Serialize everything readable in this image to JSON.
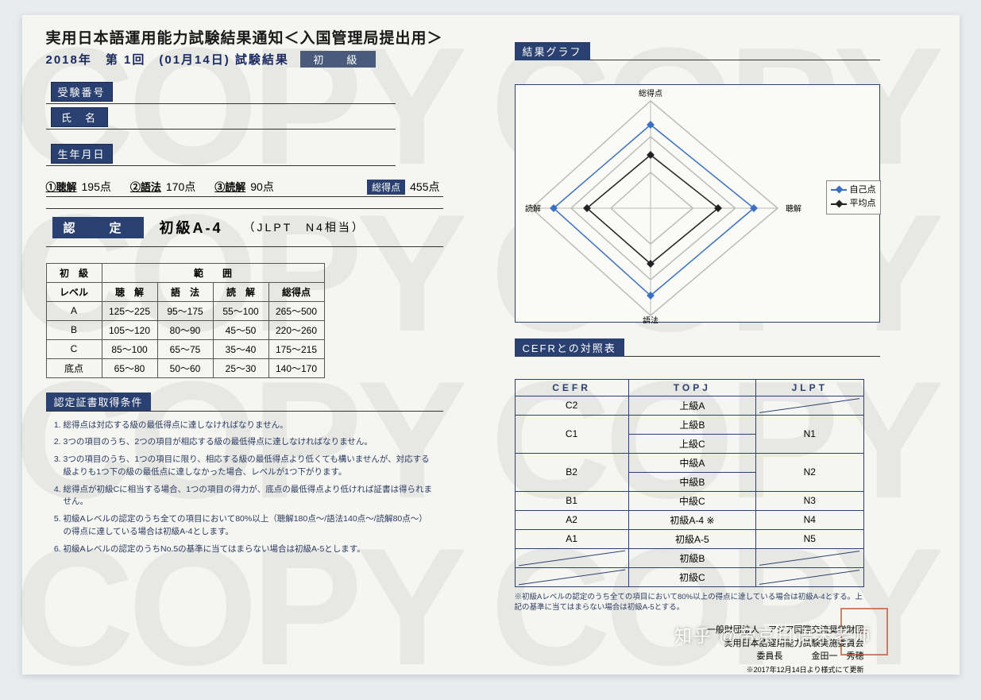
{
  "header": {
    "title": "実用日本語運用能力試験結果通知＜入国管理局提出用＞",
    "subtitle": "2018年　第 1回　(01月14日) 試験結果",
    "level_tag": "初　級"
  },
  "fields": {
    "exam_number_label": "受験番号",
    "name_label": "氏　名",
    "birthdate_label": "生年月日"
  },
  "scores": {
    "listening_label": "①聴解",
    "listening_value": "195点",
    "grammar_label": "②語法",
    "grammar_value": "170点",
    "reading_label": "③読解",
    "reading_value": "90点",
    "total_label": "総得点",
    "total_value": "455点"
  },
  "certification": {
    "label": "認　定",
    "value": "初級A-4",
    "note": "（JLPT　N4相当）"
  },
  "range_table": {
    "group_header_level": "初　級",
    "group_header_range": "範　　囲",
    "columns": [
      "レベル",
      "聴　解",
      "語　法",
      "読　解",
      "総得点"
    ],
    "rows": [
      [
        "A",
        "125～225",
        "95～175",
        "55～100",
        "265～500"
      ],
      [
        "B",
        "105～120",
        "80～90",
        "45～50",
        "220～260"
      ],
      [
        "C",
        "85～100",
        "65～75",
        "35～40",
        "175～215"
      ],
      [
        "底点",
        "65～80",
        "50～60",
        "25～30",
        "140～170"
      ]
    ]
  },
  "conditions": {
    "heading": "認定証書取得条件",
    "items": [
      "総得点は対応する級の最低得点に達しなければなりません。",
      "3つの項目のうち、2つの項目が相応する級の最低得点に達しなければなりません。",
      "3つの項目のうち、1つの項目に限り、相応する級の最低得点より低くても構いませんが、対応する級よりも1つ下の級の最低点に達しなかった場合、レベルが1つ下がります。",
      "総得点が初級Cに相当する場合、1つの項目の得力が、底点の最低得点より低ければ証書は得られません。",
      "初級Aレベルの認定のうち全ての項目において80%以上（聴解180点～/語法140点～/読解80点～）の得点に達している場合は初級A-4とします。",
      "初級Aレベルの認定のうちNo.5の基準に当てはまらない場合は初級A-5とします。"
    ]
  },
  "chart": {
    "title": "結果グラフ",
    "axes": {
      "top": "総得点",
      "right": "聴解",
      "bottom": "語法",
      "left": "読解"
    },
    "legend_self": "自己点",
    "legend_avg": "平均点",
    "self_color": "#3a70c0",
    "avg_color": "#222222",
    "self_points": [
      [
        170,
        50
      ],
      [
        300,
        155
      ],
      [
        170,
        265
      ],
      [
        48,
        155
      ]
    ],
    "avg_points": [
      [
        170,
        88
      ],
      [
        255,
        155
      ],
      [
        170,
        225
      ],
      [
        90,
        155
      ]
    ],
    "grid_outer": [
      [
        170,
        20
      ],
      [
        330,
        155
      ],
      [
        170,
        290
      ],
      [
        20,
        155
      ]
    ],
    "label_fontsize": 10,
    "bg_color": "#fafaf7",
    "border_color": "#2a4070"
  },
  "cefr": {
    "heading": "CEFRとの対照表",
    "columns": [
      "CEFR",
      "TOPJ",
      "JLPT"
    ],
    "rows": [
      {
        "cefr": "C2",
        "topj": "上級A",
        "jlpt": "strike"
      },
      {
        "cefr": "C1",
        "topj": [
          "上級B",
          "上級C"
        ],
        "jlpt": "N1"
      },
      {
        "cefr": "B2",
        "topj": [
          "中級A",
          "中級B"
        ],
        "jlpt": "N2"
      },
      {
        "cefr": "B1",
        "topj": "中級C",
        "jlpt": "N3"
      },
      {
        "cefr": "A2",
        "topj": "初級A-4 ※",
        "jlpt": "N4"
      },
      {
        "cefr": "A1",
        "topj": "初級A-5",
        "jlpt": "N5"
      },
      {
        "cefr": "strike",
        "topj": "初級B",
        "jlpt": "strike"
      },
      {
        "cefr": "strike",
        "topj": "初級C",
        "jlpt": "strike"
      }
    ],
    "notes": "※初級Aレベルの認定のうち全ての項目において80%以上の得点に達している場合は初級A-4とする。上記の基準に当てはまらない場合は初級A-5とする。"
  },
  "issuer": {
    "org1": "一般財団法人　アジア国際交流奨学財団",
    "org2": "実用日本語運用能力試験実施委員会",
    "chair_label": "委員長",
    "chair_name": "金田一　秀穂",
    "revision": "※2017年12月14日より様式にて更新"
  },
  "watermark_text": "COPY",
  "credit": "知乎 @帝京日语宋老师",
  "colors": {
    "primary": "#2a4070",
    "ink": "#1a1a1a",
    "paper": "#f5f5f1"
  }
}
